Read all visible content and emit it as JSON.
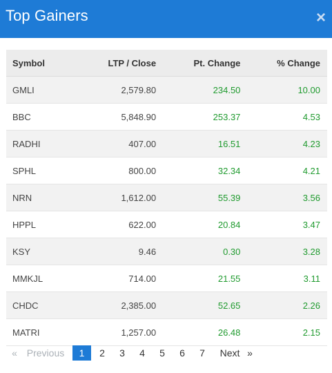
{
  "modal": {
    "title": "Top Gainers",
    "close_symbol": "×"
  },
  "table": {
    "headers": {
      "symbol": "Symbol",
      "ltp": "LTP / Close",
      "pt_change": "Pt. Change",
      "pct_change": "% Change"
    },
    "rows": [
      {
        "symbol": "GMLI",
        "ltp": "2,579.80",
        "pt": "234.50",
        "pct": "10.00"
      },
      {
        "symbol": "BBC",
        "ltp": "5,848.90",
        "pt": "253.37",
        "pct": "4.53"
      },
      {
        "symbol": "RADHI",
        "ltp": "407.00",
        "pt": "16.51",
        "pct": "4.23"
      },
      {
        "symbol": "SPHL",
        "ltp": "800.00",
        "pt": "32.34",
        "pct": "4.21"
      },
      {
        "symbol": "NRN",
        "ltp": "1,612.00",
        "pt": "55.39",
        "pct": "3.56"
      },
      {
        "symbol": "HPPL",
        "ltp": "622.00",
        "pt": "20.84",
        "pct": "3.47"
      },
      {
        "symbol": "KSY",
        "ltp": "9.46",
        "pt": "0.30",
        "pct": "3.28"
      },
      {
        "symbol": "MMKJL",
        "ltp": "714.00",
        "pt": "21.55",
        "pct": "3.11"
      },
      {
        "symbol": "CHDC",
        "ltp": "2,385.00",
        "pt": "52.65",
        "pct": "2.26"
      },
      {
        "symbol": "MATRI",
        "ltp": "1,257.00",
        "pt": "26.48",
        "pct": "2.15"
      }
    ]
  },
  "pagination": {
    "first_symbol": "«",
    "previous_label": "Previous",
    "pages": [
      "1",
      "2",
      "3",
      "4",
      "5",
      "6",
      "7"
    ],
    "active_page": "1",
    "next_label": "Next",
    "last_symbol": "»"
  },
  "colors": {
    "header_bg": "#1e7bd6",
    "positive": "#1f9a2e",
    "active_page_bg": "#1e7bd6"
  }
}
